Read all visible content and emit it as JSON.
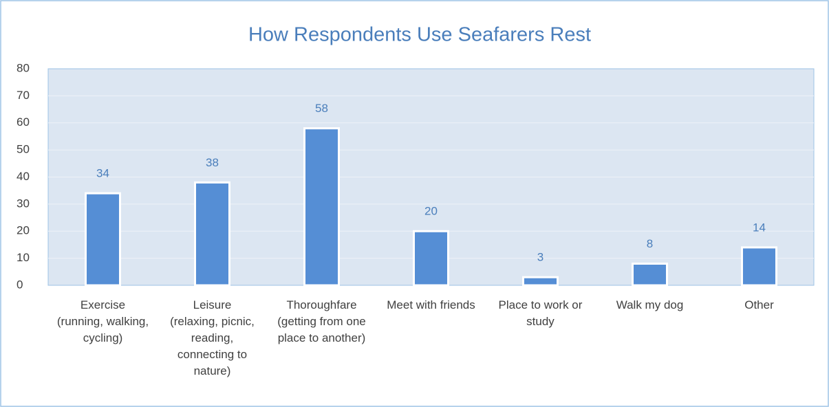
{
  "chart_data": {
    "type": "bar",
    "title": "How Respondents Use Seafarers Rest",
    "categories": [
      "Exercise (running, walking, cycling)",
      "Leisure (relaxing, picnic, reading, connecting to nature)",
      "Thoroughfare (getting from one place to another)",
      "Meet with friends",
      "Place to work or study",
      "Walk my dog",
      "Other"
    ],
    "values": [
      34,
      38,
      58,
      20,
      3,
      8,
      14
    ],
    "color": "#558ed5",
    "ylim": [
      0,
      80
    ],
    "yticks": [
      0,
      10,
      20,
      30,
      40,
      50,
      60,
      70,
      80
    ],
    "grid": true
  }
}
